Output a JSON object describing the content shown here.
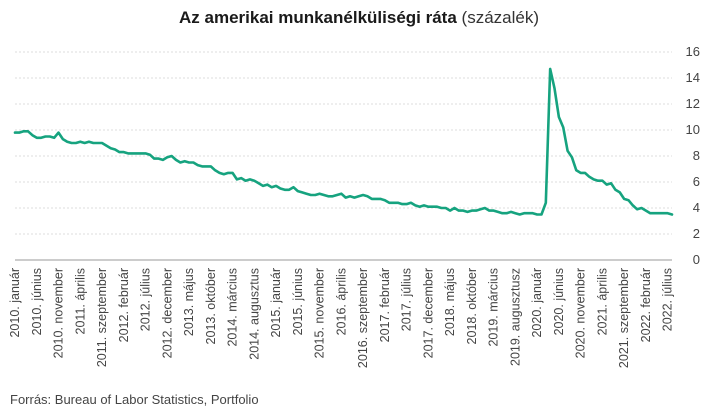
{
  "chart_data": {
    "type": "line",
    "title": "Az amerikai munkanélküliségi ráta",
    "title_unit": "(százalék)",
    "source": "Forrás: Bureau of Labor Statistics, Portfolio",
    "line_color": "#16a37f",
    "grid": true,
    "ylim": [
      0,
      16
    ],
    "yticks": [
      0,
      2,
      4,
      6,
      8,
      10,
      12,
      14,
      16
    ],
    "xlabels": [
      "2010. január",
      "2010. június",
      "2010. november",
      "2011. április",
      "2011. szeptember",
      "2012. február",
      "2012. július",
      "2012. december",
      "2013. május",
      "2013. október",
      "2014. március",
      "2014. augusztus",
      "2015. január",
      "2015. június",
      "2015. november",
      "2016. április",
      "2016. szeptember",
      "2017. február",
      "2017. július",
      "2017. december",
      "2018. május",
      "2018. október",
      "2019. március",
      "2019. augusztusz",
      "2020. január",
      "2020. június",
      "2020. november",
      "2021. április",
      "2021. szeptember",
      "2022. február",
      "2022. július"
    ],
    "start": "2010-01",
    "values": [
      9.8,
      9.8,
      9.9,
      9.9,
      9.6,
      9.4,
      9.4,
      9.5,
      9.5,
      9.4,
      9.8,
      9.3,
      9.1,
      9.0,
      9.0,
      9.1,
      9.0,
      9.1,
      9.0,
      9.0,
      9.0,
      8.8,
      8.6,
      8.5,
      8.3,
      8.3,
      8.2,
      8.2,
      8.2,
      8.2,
      8.2,
      8.1,
      7.8,
      7.8,
      7.7,
      7.9,
      8.0,
      7.7,
      7.5,
      7.6,
      7.5,
      7.5,
      7.3,
      7.2,
      7.2,
      7.2,
      6.9,
      6.7,
      6.6,
      6.7,
      6.7,
      6.2,
      6.3,
      6.1,
      6.2,
      6.1,
      5.9,
      5.7,
      5.8,
      5.6,
      5.7,
      5.5,
      5.4,
      5.4,
      5.6,
      5.3,
      5.2,
      5.1,
      5.0,
      5.0,
      5.1,
      5.0,
      4.9,
      4.9,
      5.0,
      5.1,
      4.8,
      4.9,
      4.8,
      4.9,
      5.0,
      4.9,
      4.7,
      4.7,
      4.7,
      4.6,
      4.4,
      4.4,
      4.4,
      4.3,
      4.3,
      4.4,
      4.2,
      4.1,
      4.2,
      4.1,
      4.1,
      4.1,
      4.0,
      4.0,
      3.8,
      4.0,
      3.8,
      3.8,
      3.7,
      3.8,
      3.8,
      3.9,
      4.0,
      3.8,
      3.8,
      3.7,
      3.6,
      3.6,
      3.7,
      3.6,
      3.5,
      3.6,
      3.6,
      3.6,
      3.5,
      3.5,
      4.4,
      14.7,
      13.2,
      11.0,
      10.2,
      8.4,
      7.9,
      6.9,
      6.7,
      6.7,
      6.4,
      6.2,
      6.1,
      6.1,
      5.8,
      5.9,
      5.4,
      5.2,
      4.7,
      4.6,
      4.2,
      3.9,
      4.0,
      3.8,
      3.6,
      3.6,
      3.6,
      3.6,
      3.6,
      3.5
    ]
  }
}
